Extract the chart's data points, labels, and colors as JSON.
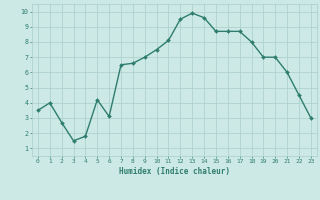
{
  "x": [
    0,
    1,
    2,
    3,
    4,
    5,
    6,
    7,
    8,
    9,
    10,
    11,
    12,
    13,
    14,
    15,
    16,
    17,
    18,
    19,
    20,
    21,
    22,
    23
  ],
  "y": [
    3.5,
    4.0,
    2.7,
    1.5,
    1.8,
    4.2,
    3.1,
    6.5,
    6.6,
    7.0,
    7.5,
    8.1,
    9.5,
    9.9,
    9.6,
    8.7,
    8.7,
    8.7,
    8.0,
    7.0,
    7.0,
    6.0,
    4.5,
    3.0
  ],
  "line_color": "#2e7d6e",
  "marker": "D",
  "marker_size": 2.0,
  "bg_color": "#cce9e5",
  "grid_color": "#aacfcb",
  "xlabel": "Humidex (Indice chaleur)",
  "xlim": [
    -0.5,
    23.5
  ],
  "ylim": [
    0.5,
    10.5
  ],
  "xticks": [
    0,
    1,
    2,
    3,
    4,
    5,
    6,
    7,
    8,
    9,
    10,
    11,
    12,
    13,
    14,
    15,
    16,
    17,
    18,
    19,
    20,
    21,
    22,
    23
  ],
  "yticks": [
    1,
    2,
    3,
    4,
    5,
    6,
    7,
    8,
    9,
    10
  ],
  "font_color": "#2e7d6e",
  "linewidth": 1.0
}
